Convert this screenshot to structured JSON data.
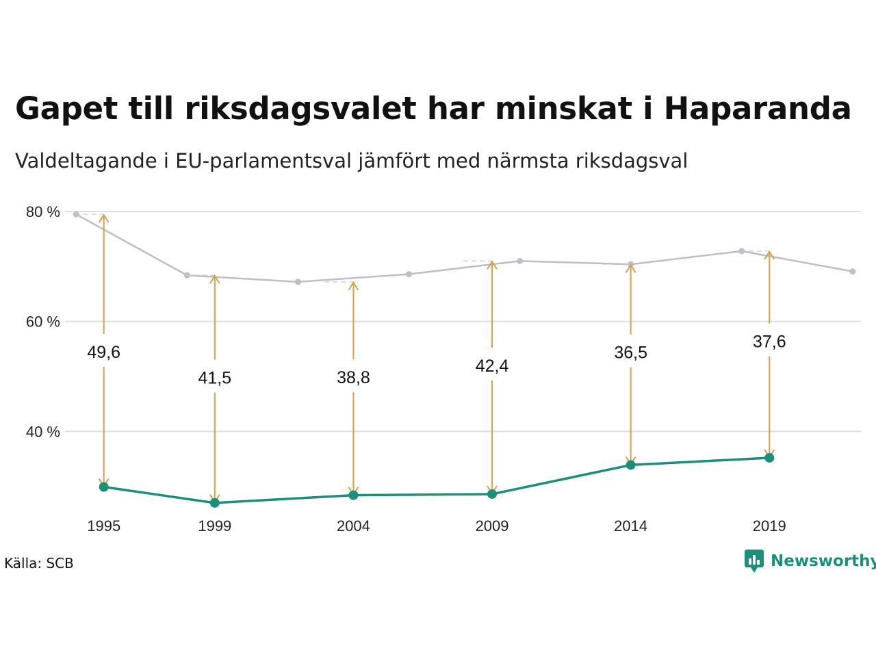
{
  "header": {
    "title": "Gapet till riksdagsvalet har minskat i Haparanda",
    "subtitle": "Valdeltagande i EU-parlamentsval jämfört med närmsta riksdagsval"
  },
  "footer": {
    "source": "Källa: SCB",
    "brand": "Newsworthy"
  },
  "colors": {
    "eu": "#1b8f7c",
    "riksdag": "#bfbccb",
    "gap": "#d4a04a",
    "grid": "#dddddd"
  },
  "chart_data": {
    "type": "line",
    "title": "Gapet till riksdagsvalet har minskat i Haparanda",
    "subtitle": "Valdeltagande i EU-parlamentsval jämfört med närmsta riksdagsval",
    "xlabel": "",
    "ylabel": "",
    "xlim": [
      1993.6,
      2022.3
    ],
    "ylim": [
      22,
      82
    ],
    "yticks": [
      {
        "value": 40,
        "label": "40 %"
      },
      {
        "value": 60,
        "label": "60 %"
      },
      {
        "value": 80,
        "label": "80 %"
      }
    ],
    "xticks": [
      1995,
      1999,
      2004,
      2009,
      2014,
      2019
    ],
    "grid": true,
    "legend": "none",
    "series": [
      {
        "key": "riksdag",
        "x": [
          1994,
          1998,
          2002,
          2006,
          2010,
          2014,
          2018,
          2022
        ],
        "values": [
          79.5,
          68.4,
          67.2,
          68.6,
          71.0,
          70.4,
          72.8,
          69.1
        ]
      },
      {
        "key": "eu",
        "x": [
          1995,
          1999,
          2004,
          2009,
          2014,
          2019
        ],
        "values": [
          29.9,
          27.0,
          28.4,
          28.6,
          33.9,
          35.2
        ]
      }
    ],
    "gaps": [
      {
        "x": 1995,
        "from": 29.9,
        "to": 79.5,
        "label": "49,6",
        "label_y": 54.5
      },
      {
        "x": 1999,
        "from": 27.0,
        "to": 68.4,
        "label": "41,5",
        "label_y": 49.8
      },
      {
        "x": 2004,
        "from": 28.4,
        "to": 67.2,
        "label": "38,8",
        "label_y": 49.9
      },
      {
        "x": 2009,
        "from": 28.6,
        "to": 71.0,
        "label": "42,4",
        "label_y": 52.0
      },
      {
        "x": 2014,
        "from": 33.9,
        "to": 70.4,
        "label": "36,5",
        "label_y": 54.4
      },
      {
        "x": 2019,
        "from": 35.2,
        "to": 72.8,
        "label": "37,6",
        "label_y": 56.4
      }
    ]
  }
}
